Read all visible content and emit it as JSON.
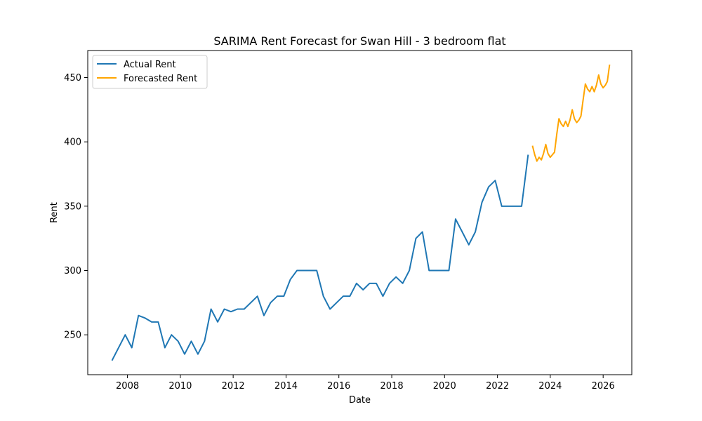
{
  "chart_data": {
    "type": "line",
    "title": "SARIMA Rent Forecast for Swan Hill - 3 bedroom flat",
    "xlabel": "Date",
    "ylabel": "Rent",
    "xlim": [
      "2006-07-01",
      "2027-02-01"
    ],
    "ylim": [
      219,
      471
    ],
    "x_ticks": [
      "2008-01-01",
      "2010-01-01",
      "2012-01-01",
      "2014-01-01",
      "2016-01-01",
      "2018-01-01",
      "2020-01-01",
      "2022-01-01",
      "2024-01-01",
      "2026-01-01"
    ],
    "x_tick_labels": [
      "2008",
      "2010",
      "2012",
      "2014",
      "2016",
      "2018",
      "2020",
      "2022",
      "2024",
      "2026"
    ],
    "y_ticks": [
      250,
      300,
      350,
      400,
      450
    ],
    "y_tick_labels": [
      "250",
      "300",
      "350",
      "400",
      "450"
    ],
    "legend_position": "top-left",
    "grid": false,
    "series": [
      {
        "name": "Actual Rent",
        "color": "#1f77b4",
        "points": [
          [
            "2007-06-01",
            230
          ],
          [
            "2007-12-01",
            250
          ],
          [
            "2008-03-01",
            240
          ],
          [
            "2008-06-01",
            265
          ],
          [
            "2008-09-01",
            263
          ],
          [
            "2008-12-01",
            260
          ],
          [
            "2009-03-01",
            260
          ],
          [
            "2009-06-01",
            240
          ],
          [
            "2009-09-01",
            250
          ],
          [
            "2009-12-01",
            245
          ],
          [
            "2010-03-01",
            235
          ],
          [
            "2010-06-01",
            245
          ],
          [
            "2010-09-01",
            235
          ],
          [
            "2010-12-01",
            245
          ],
          [
            "2011-03-01",
            270
          ],
          [
            "2011-06-01",
            260
          ],
          [
            "2011-09-01",
            270
          ],
          [
            "2011-12-01",
            268
          ],
          [
            "2012-03-01",
            270
          ],
          [
            "2012-06-01",
            270
          ],
          [
            "2012-12-01",
            280
          ],
          [
            "2013-03-01",
            265
          ],
          [
            "2013-06-01",
            275
          ],
          [
            "2013-09-01",
            280
          ],
          [
            "2013-12-01",
            280
          ],
          [
            "2014-03-01",
            293
          ],
          [
            "2014-06-01",
            300
          ],
          [
            "2014-09-01",
            300
          ],
          [
            "2014-12-01",
            300
          ],
          [
            "2015-03-01",
            300
          ],
          [
            "2015-06-01",
            280
          ],
          [
            "2015-09-01",
            270
          ],
          [
            "2015-12-01",
            275
          ],
          [
            "2016-03-01",
            280
          ],
          [
            "2016-06-01",
            280
          ],
          [
            "2016-09-01",
            290
          ],
          [
            "2016-12-01",
            285
          ],
          [
            "2017-03-01",
            290
          ],
          [
            "2017-06-01",
            290
          ],
          [
            "2017-09-01",
            280
          ],
          [
            "2017-12-01",
            290
          ],
          [
            "2018-03-01",
            295
          ],
          [
            "2018-06-01",
            290
          ],
          [
            "2018-09-01",
            300
          ],
          [
            "2018-12-01",
            325
          ],
          [
            "2019-03-01",
            330
          ],
          [
            "2019-06-01",
            300
          ],
          [
            "2019-09-01",
            300
          ],
          [
            "2019-12-01",
            300
          ],
          [
            "2020-03-01",
            300
          ],
          [
            "2020-06-01",
            340
          ],
          [
            "2020-09-01",
            330
          ],
          [
            "2020-12-01",
            320
          ],
          [
            "2021-03-01",
            330
          ],
          [
            "2021-06-01",
            353
          ],
          [
            "2021-09-01",
            365
          ],
          [
            "2021-12-01",
            370
          ],
          [
            "2022-03-01",
            350
          ],
          [
            "2022-06-01",
            350
          ],
          [
            "2022-09-01",
            350
          ],
          [
            "2022-12-01",
            350
          ],
          [
            "2023-03-01",
            390
          ]
        ]
      },
      {
        "name": "Forecasted Rent",
        "color": "#ffa500",
        "points": [
          [
            "2023-04-30",
            397
          ],
          [
            "2023-05-31",
            390
          ],
          [
            "2023-06-30",
            385
          ],
          [
            "2023-07-31",
            388
          ],
          [
            "2023-08-31",
            386
          ],
          [
            "2023-09-30",
            391
          ],
          [
            "2023-10-31",
            398
          ],
          [
            "2023-11-30",
            391
          ],
          [
            "2023-12-31",
            388
          ],
          [
            "2024-01-31",
            390
          ],
          [
            "2024-02-29",
            392
          ],
          [
            "2024-03-31",
            406
          ],
          [
            "2024-04-30",
            418
          ],
          [
            "2024-05-31",
            414
          ],
          [
            "2024-06-30",
            412
          ],
          [
            "2024-07-31",
            416
          ],
          [
            "2024-08-31",
            412
          ],
          [
            "2024-09-30",
            417
          ],
          [
            "2024-10-31",
            425
          ],
          [
            "2024-11-30",
            418
          ],
          [
            "2024-12-31",
            415
          ],
          [
            "2025-01-31",
            417
          ],
          [
            "2025-02-28",
            420
          ],
          [
            "2025-03-31",
            433
          ],
          [
            "2025-04-30",
            445
          ],
          [
            "2025-05-31",
            441
          ],
          [
            "2025-06-30",
            439
          ],
          [
            "2025-07-31",
            443
          ],
          [
            "2025-08-31",
            439
          ],
          [
            "2025-09-30",
            444
          ],
          [
            "2025-10-31",
            452
          ],
          [
            "2025-11-30",
            445
          ],
          [
            "2025-12-31",
            442
          ],
          [
            "2026-01-31",
            444
          ],
          [
            "2026-02-28",
            447
          ],
          [
            "2026-03-31",
            460
          ]
        ]
      }
    ]
  }
}
